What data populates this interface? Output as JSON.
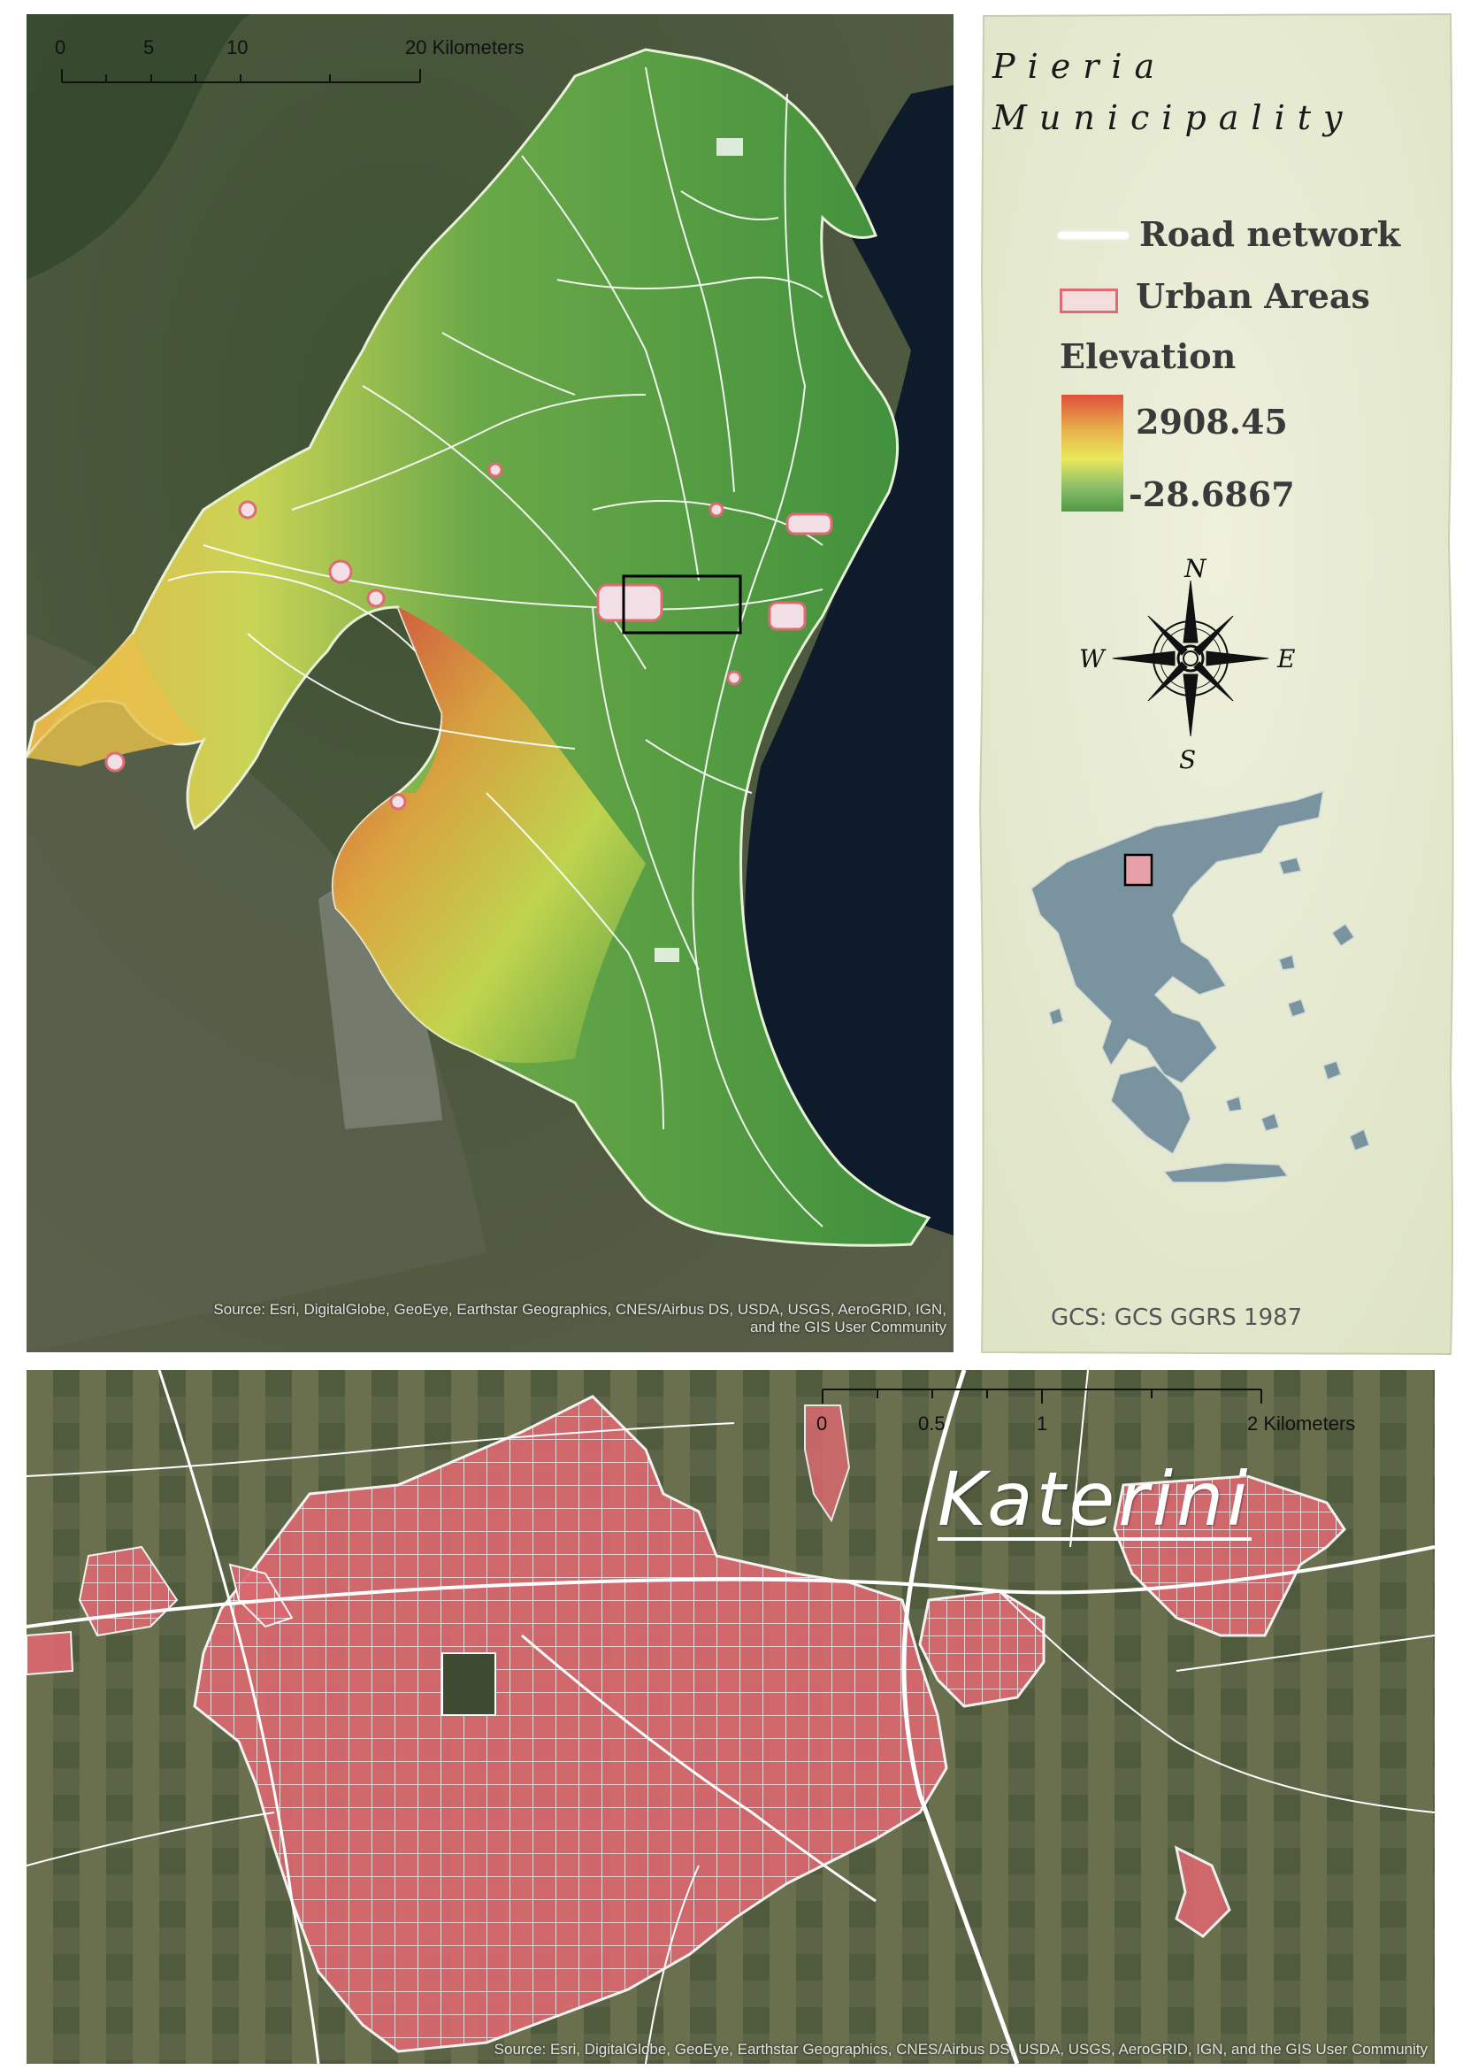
{
  "main_map": {
    "scale_bar": {
      "ticks": [
        "0",
        "5",
        "10",
        "20 Kilometers"
      ]
    },
    "attribution_line1": "Source: Esri, DigitalGlobe, GeoEye, Earthstar Geographics, CNES/Airbus DS, USDA, USGS, AeroGRID, IGN,",
    "attribution_line2": "and the GIS User Community"
  },
  "legend": {
    "title_line1": "Pieria",
    "title_line2": "Municipality",
    "road_label": "Road network",
    "urban_label": "Urban Areas",
    "elevation_label": "Elevation",
    "elevation_max": "2908.45",
    "elevation_min": "-28.6867",
    "compass": {
      "n": "N",
      "s": "S",
      "e": "E",
      "w": "W"
    },
    "gcs": "GCS: GCS GGRS 1987"
  },
  "inset_map": {
    "title": "Katerini",
    "scale_bar": {
      "ticks": [
        "0",
        "0.5",
        "1",
        "2 Kilometers"
      ]
    },
    "attribution": "Source: Esri, DigitalGlobe, GeoEye, Earthstar Geographics, CNES/Airbus DS, USDA, USGS, AeroGRID, IGN, and the GIS User Community"
  },
  "colors": {
    "sea": "#0d1b2a",
    "elevation_high": "#e0503a",
    "elevation_mid": "#e8e85a",
    "elevation_low": "#4f9a45",
    "urban": "#e06a74",
    "road": "#ffffff",
    "parchment": "#e6ead0"
  }
}
